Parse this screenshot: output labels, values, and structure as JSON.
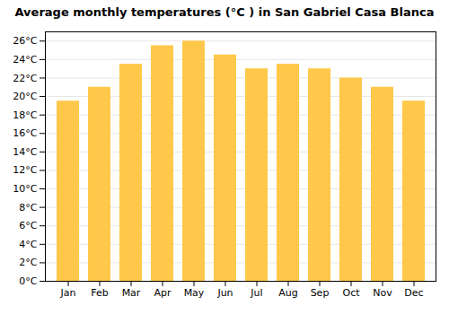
{
  "chart_data": {
    "type": "bar",
    "title": "Average monthly temperatures (°C ) in San Gabriel Casa Blanca",
    "categories": [
      "Jan",
      "Feb",
      "Mar",
      "Apr",
      "May",
      "Jun",
      "Jul",
      "Aug",
      "Sep",
      "Oct",
      "Nov",
      "Dec"
    ],
    "values": [
      19.5,
      21.0,
      23.5,
      25.5,
      26.0,
      24.5,
      23.0,
      23.5,
      23.0,
      22.0,
      21.0,
      19.5
    ],
    "color": "#FFC84A",
    "ylim": [
      0,
      27
    ],
    "yticks": [
      {
        "value": 0,
        "label": "0°C"
      },
      {
        "value": 2,
        "label": "2°C"
      },
      {
        "value": 4,
        "label": "4°C"
      },
      {
        "value": 6,
        "label": "6°C"
      },
      {
        "value": 8,
        "label": "8°C"
      },
      {
        "value": 10,
        "label": "10°C"
      },
      {
        "value": 12,
        "label": "12°C"
      },
      {
        "value": 14,
        "label": "14°C"
      },
      {
        "value": 16,
        "label": "16°C"
      },
      {
        "value": 18,
        "label": "18°C"
      },
      {
        "value": 20,
        "label": "20°C"
      },
      {
        "value": 22,
        "label": "22°C"
      },
      {
        "value": 24,
        "label": "24°C"
      },
      {
        "value": 26,
        "label": "26°C"
      }
    ],
    "grid": true
  }
}
